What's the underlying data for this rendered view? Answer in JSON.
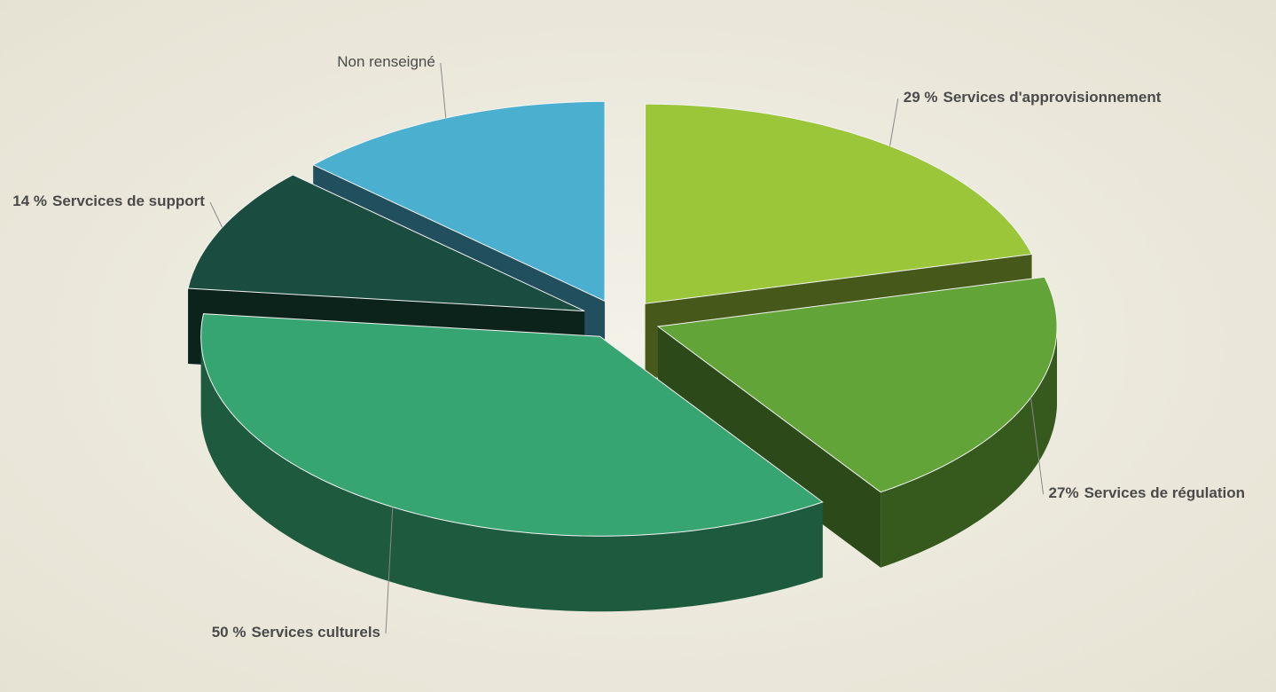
{
  "chart_data": {
    "type": "pie3d",
    "categories": [
      "Services d'approvisionnement",
      "Services de régulation",
      "Services culturels",
      "Servcices de support",
      "Non renseigné"
    ],
    "values": [
      29,
      27,
      50,
      14,
      18
    ],
    "value_labels": [
      "29 %",
      "27%",
      "50 %",
      "14 %",
      null
    ],
    "colors": [
      "#9bc63a",
      "#62a437",
      "#36a571",
      "#1a4d3f",
      "#4bafcf"
    ]
  }
}
